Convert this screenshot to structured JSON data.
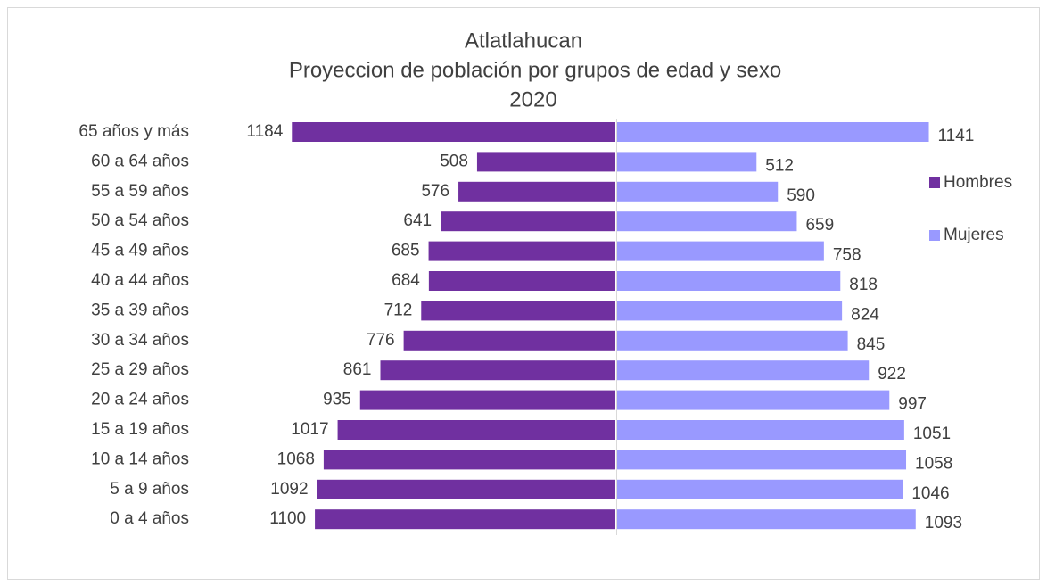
{
  "chart_data": {
    "type": "bar",
    "title": [
      "Atlatlahucan",
      "Proyeccion de población por grupos de edad y sexo",
      "2020"
    ],
    "categories": [
      "65 años y más",
      "60 a 64 años",
      "55 a 59 años",
      "50 a 54 años",
      "45 a 49 años",
      "40 a 44 años",
      "35 a 39 años",
      "30 a 34 años",
      "25 a 29 años",
      "20 a 24 años",
      "15 a 19 años",
      "10 a 14 años",
      "5 a 9 años",
      "0 a 4 años"
    ],
    "series": [
      {
        "name": "Hombres",
        "color": "#7030a0",
        "values": [
          1184,
          508,
          576,
          641,
          685,
          684,
          712,
          776,
          861,
          935,
          1017,
          1068,
          1092,
          1100
        ]
      },
      {
        "name": "Mujeres",
        "color": "#9999ff",
        "values": [
          1141,
          512,
          590,
          659,
          758,
          818,
          824,
          845,
          922,
          997,
          1051,
          1058,
          1046,
          1093
        ]
      }
    ],
    "xlim": [
      -1250,
      1250
    ],
    "legend": "right"
  }
}
